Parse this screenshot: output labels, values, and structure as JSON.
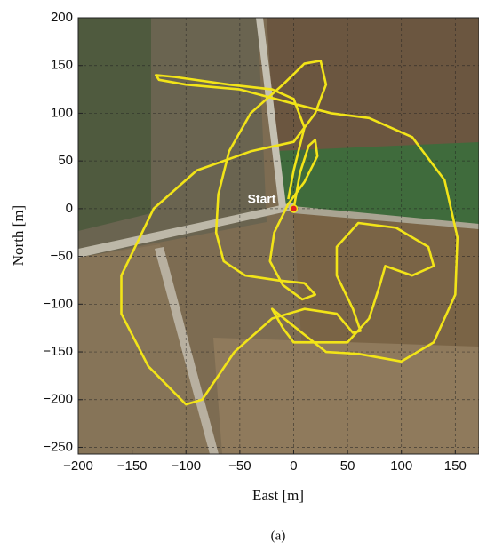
{
  "chart_data": {
    "type": "line",
    "x_label": "East [m]",
    "y_label": "North [m]",
    "caption": "(a)",
    "x": [
      0,
      6,
      14,
      20,
      22,
      10,
      -5,
      -18,
      -22,
      -10,
      8,
      20,
      10,
      -15,
      -45,
      -65,
      -72,
      -70,
      -60,
      -40,
      -10,
      10,
      25,
      30,
      20,
      0,
      -40,
      -90,
      -130,
      -160,
      -160,
      -135,
      -100,
      -85,
      -55,
      -20,
      10,
      40,
      55,
      62,
      55,
      40,
      40,
      60,
      95,
      125,
      130,
      110,
      85,
      80,
      70,
      50,
      30,
      0,
      -10,
      -20,
      30,
      60,
      100,
      130,
      150,
      152,
      140,
      110,
      70,
      35,
      0,
      -50,
      -100,
      -125,
      -128,
      -110,
      -60,
      -20,
      0,
      10,
      0,
      -5
    ],
    "series": [
      {
        "color": "#f2e418",
        "values": [
          0,
          38,
          66,
          72,
          55,
          28,
          5,
          -25,
          -55,
          -80,
          -95,
          -90,
          -78,
          -75,
          -70,
          -55,
          -25,
          15,
          60,
          100,
          130,
          152,
          155,
          130,
          100,
          70,
          60,
          40,
          0,
          -70,
          -110,
          -165,
          -205,
          -200,
          -150,
          -115,
          -105,
          -110,
          -130,
          -128,
          -105,
          -70,
          -40,
          -15,
          -20,
          -40,
          -60,
          -70,
          -60,
          -80,
          -115,
          -140,
          -140,
          -140,
          -125,
          -105,
          -150,
          -152,
          -160,
          -140,
          -90,
          -30,
          30,
          75,
          95,
          100,
          110,
          125,
          130,
          135,
          140,
          138,
          130,
          125,
          115,
          85,
          40,
          10
        ]
      }
    ],
    "annotations": [
      {
        "text": "Start",
        "x": 0,
        "y": 0
      }
    ],
    "xlim": [
      -200,
      172
    ],
    "ylim": [
      -257,
      200
    ],
    "xticks": [
      {
        "value": -200,
        "label": "−200"
      },
      {
        "value": -150,
        "label": "−150"
      },
      {
        "value": -100,
        "label": "−100"
      },
      {
        "value": -50,
        "label": "−50"
      },
      0,
      50,
      100,
      150
    ],
    "yticks": [
      {
        "value": -250,
        "label": "−250"
      },
      {
        "value": -200,
        "label": "−200"
      },
      {
        "value": -150,
        "label": "−150"
      },
      {
        "value": -100,
        "label": "−100"
      },
      {
        "value": -50,
        "label": "−50"
      },
      0,
      50,
      100,
      150,
      200
    ],
    "grid": true
  }
}
